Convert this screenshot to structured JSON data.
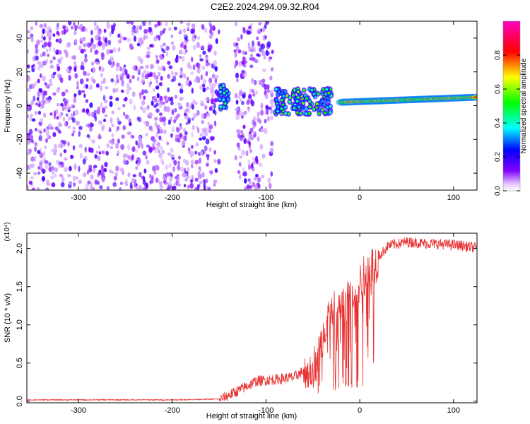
{
  "title": "C2E2.2024.294.09.32.R04",
  "chart_data": [
    {
      "type": "heatmap",
      "xlabel": "Height of straight line (km)",
      "ylabel": "Frequency (Hz)",
      "xlim": [
        -355,
        125
      ],
      "ylim": [
        -50,
        50
      ],
      "x_ticks": [
        -300,
        -200,
        -100,
        0,
        100
      ],
      "x_tick_labels": [
        "-300",
        "-200",
        "-100",
        "0",
        "100"
      ],
      "y_ticks": [
        -40,
        -20,
        0,
        20,
        40
      ],
      "y_tick_labels": [
        "-40",
        "-20",
        "0",
        "20",
        "40"
      ],
      "colorbar": {
        "label": "Normalized spectral amplitude",
        "range": [
          0,
          1
        ],
        "ticks": [
          0,
          0.2,
          0.4,
          0.6,
          0.8
        ],
        "tick_labels": [
          "0.0",
          "0.2",
          "0.4",
          "0.6",
          "0.8"
        ],
        "colors": [
          "#ffffff",
          "#8000ff",
          "#0000ff",
          "#00ffff",
          "#00ff00",
          "#ffff00",
          "#ff0000",
          "#ff00c0"
        ]
      },
      "regions": [
        {
          "name": "noise",
          "x_range": [
            -355,
            -150
          ],
          "freq_range": [
            -50,
            50
          ],
          "amplitude": [
            0.05,
            0.2
          ]
        },
        {
          "name": "noise",
          "x_range": [
            -133,
            -93
          ],
          "freq_range": [
            -50,
            50
          ],
          "amplitude": [
            0.05,
            0.2
          ]
        },
        {
          "name": "signal-onset",
          "x_range": [
            -150,
            -140
          ],
          "freq_range": [
            -2,
            12
          ],
          "amplitude": [
            0.3,
            0.5
          ]
        },
        {
          "name": "scattered-signal",
          "x_range": [
            -90,
            -30
          ],
          "freq_range": [
            -5,
            10
          ],
          "amplitude": [
            0.3,
            0.6
          ]
        },
        {
          "name": "main-tone",
          "x_range": [
            -20,
            125
          ],
          "freq_center": [
            2,
            5
          ],
          "amplitude": [
            0.6,
            0.9
          ]
        }
      ]
    },
    {
      "type": "line",
      "xlabel": "Height of straight line (km)",
      "ylabel": "SNR (10 * v/v)",
      "y_scale_label": "(x10⁴)",
      "xlim": [
        -355,
        125
      ],
      "ylim": [
        -0.02,
        2.2
      ],
      "x_ticks": [
        -300,
        -200,
        -100,
        0,
        100
      ],
      "x_tick_labels": [
        "-300",
        "-200",
        "-100",
        "0",
        "100"
      ],
      "y_ticks": [
        0,
        0.5,
        1.0,
        1.5,
        2.0
      ],
      "y_tick_labels": [
        "0.0",
        "0.5",
        "1.0",
        "1.5",
        "2.0"
      ],
      "series": [
        {
          "name": "SNR",
          "color": "#e83030",
          "x": [
            -355,
            -300,
            -200,
            -150,
            -130,
            -110,
            -90,
            -70,
            -55,
            -45,
            -35,
            -25,
            -18,
            -10,
            0,
            10,
            20,
            30,
            50,
            70,
            90,
            110,
            125
          ],
          "y": [
            0.02,
            0.02,
            0.02,
            0.03,
            0.15,
            0.28,
            0.3,
            0.33,
            0.45,
            0.6,
            1.15,
            1.3,
            1.35,
            1.45,
            1.6,
            1.8,
            1.9,
            2.05,
            2.1,
            2.08,
            2.07,
            2.05,
            2.02
          ]
        }
      ]
    }
  ]
}
